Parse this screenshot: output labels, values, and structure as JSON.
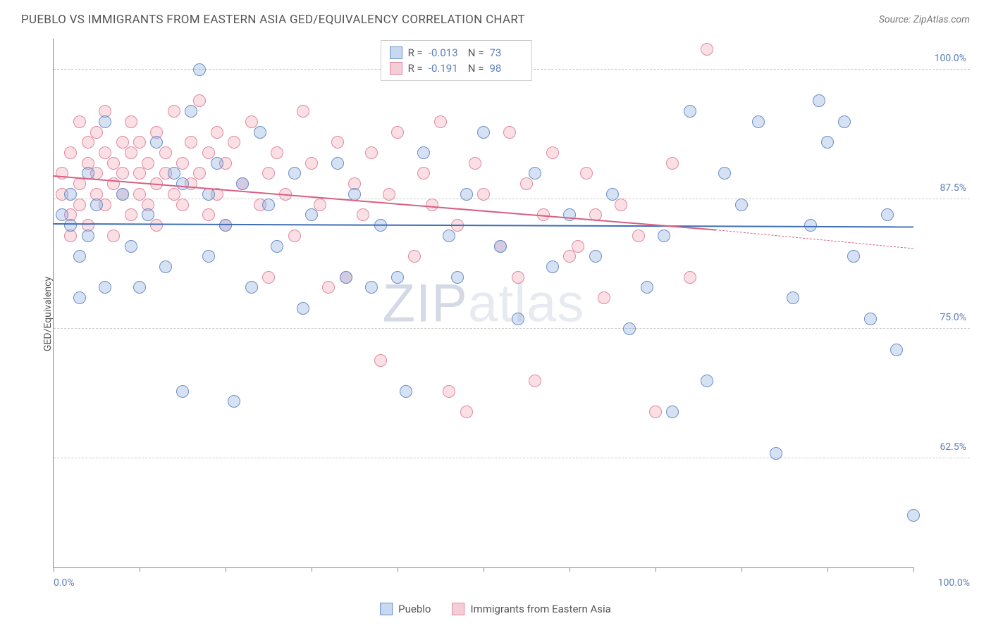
{
  "title": "PUEBLO VS IMMIGRANTS FROM EASTERN ASIA GED/EQUIVALENCY CORRELATION CHART",
  "source": "Source: ZipAtlas.com",
  "watermark_a": "ZIP",
  "watermark_b": "atlas",
  "y_axis_title": "GED/Equivalency",
  "chart": {
    "type": "scatter",
    "xlim": [
      0,
      100
    ],
    "ylim": [
      52,
      103
    ],
    "x_ticks": [
      0,
      10,
      20,
      30,
      40,
      50,
      60,
      70,
      80,
      90,
      100
    ],
    "y_grid": [
      62.5,
      75.0,
      87.5,
      100.0
    ],
    "y_tick_labels": [
      "62.5%",
      "75.0%",
      "87.5%",
      "100.0%"
    ],
    "x_min_label": "0.0%",
    "x_max_label": "100.0%",
    "background_color": "#ffffff",
    "grid_color": "#cccccc",
    "axis_color": "#888888",
    "tick_label_color": "#5b7fb8",
    "marker_radius": 9,
    "marker_stroke_width": 1.4,
    "series": [
      {
        "name": "Pueblo",
        "fill": "rgba(120,160,220,0.30)",
        "stroke": "#6a8fc8",
        "swatch_fill": "#c8d8f0",
        "swatch_border": "#6a8fc8",
        "r_label": "R =",
        "r_value": "-0.013",
        "n_label": "N =",
        "n_value": "73",
        "trend": {
          "x1": 0,
          "y1": 85.2,
          "x2": 100,
          "y2": 84.9,
          "color": "#3d6db5",
          "width": 2
        },
        "points": [
          [
            1,
            86
          ],
          [
            2,
            85
          ],
          [
            2,
            88
          ],
          [
            3,
            78
          ],
          [
            3,
            82
          ],
          [
            4,
            84
          ],
          [
            4,
            90
          ],
          [
            5,
            87
          ],
          [
            6,
            79
          ],
          [
            6,
            95
          ],
          [
            8,
            88
          ],
          [
            9,
            83
          ],
          [
            10,
            79
          ],
          [
            11,
            86
          ],
          [
            12,
            93
          ],
          [
            13,
            81
          ],
          [
            14,
            90
          ],
          [
            15,
            69
          ],
          [
            15,
            89
          ],
          [
            16,
            96
          ],
          [
            17,
            100
          ],
          [
            18,
            82
          ],
          [
            18,
            88
          ],
          [
            19,
            91
          ],
          [
            20,
            85
          ],
          [
            21,
            68
          ],
          [
            22,
            89
          ],
          [
            23,
            79
          ],
          [
            24,
            94
          ],
          [
            25,
            87
          ],
          [
            26,
            83
          ],
          [
            28,
            90
          ],
          [
            29,
            77
          ],
          [
            30,
            86
          ],
          [
            33,
            91
          ],
          [
            34,
            80
          ],
          [
            35,
            88
          ],
          [
            37,
            79
          ],
          [
            38,
            85
          ],
          [
            40,
            80
          ],
          [
            41,
            69
          ],
          [
            43,
            92
          ],
          [
            46,
            84
          ],
          [
            47,
            80
          ],
          [
            48,
            88
          ],
          [
            50,
            94
          ],
          [
            52,
            83
          ],
          [
            54,
            76
          ],
          [
            56,
            90
          ],
          [
            58,
            81
          ],
          [
            60,
            86
          ],
          [
            63,
            82
          ],
          [
            65,
            88
          ],
          [
            67,
            75
          ],
          [
            69,
            79
          ],
          [
            71,
            84
          ],
          [
            72,
            67
          ],
          [
            74,
            96
          ],
          [
            76,
            70
          ],
          [
            78,
            90
          ],
          [
            80,
            87
          ],
          [
            82,
            95
          ],
          [
            84,
            63
          ],
          [
            86,
            78
          ],
          [
            88,
            85
          ],
          [
            89,
            97
          ],
          [
            90,
            93
          ],
          [
            92,
            95
          ],
          [
            93,
            82
          ],
          [
            95,
            76
          ],
          [
            97,
            86
          ],
          [
            98,
            73
          ],
          [
            100,
            57
          ]
        ]
      },
      {
        "name": "Immigrants from Eastern Asia",
        "fill": "rgba(240,150,170,0.30)",
        "stroke": "#e08aa0",
        "swatch_fill": "#f5cdd6",
        "swatch_border": "#e08aa0",
        "r_label": "R =",
        "r_value": "-0.191",
        "n_label": "N =",
        "n_value": "98",
        "trend": {
          "x1": 0,
          "y1": 89.8,
          "x2": 77,
          "y2": 84.6,
          "color": "#d85f82",
          "width": 2
        },
        "trend_extend": {
          "x1": 77,
          "y1": 84.6,
          "x2": 100,
          "y2": 82.8,
          "color": "#d85f82"
        },
        "points": [
          [
            1,
            90
          ],
          [
            1,
            88
          ],
          [
            2,
            92
          ],
          [
            2,
            86
          ],
          [
            2,
            84
          ],
          [
            3,
            95
          ],
          [
            3,
            89
          ],
          [
            3,
            87
          ],
          [
            4,
            91
          ],
          [
            4,
            93
          ],
          [
            4,
            85
          ],
          [
            5,
            90
          ],
          [
            5,
            88
          ],
          [
            5,
            94
          ],
          [
            6,
            92
          ],
          [
            6,
            87
          ],
          [
            6,
            96
          ],
          [
            7,
            89
          ],
          [
            7,
            91
          ],
          [
            7,
            84
          ],
          [
            8,
            93
          ],
          [
            8,
            88
          ],
          [
            8,
            90
          ],
          [
            9,
            92
          ],
          [
            9,
            86
          ],
          [
            9,
            95
          ],
          [
            10,
            90
          ],
          [
            10,
            88
          ],
          [
            10,
            93
          ],
          [
            11,
            91
          ],
          [
            11,
            87
          ],
          [
            12,
            94
          ],
          [
            12,
            89
          ],
          [
            12,
            85
          ],
          [
            13,
            92
          ],
          [
            13,
            90
          ],
          [
            14,
            96
          ],
          [
            14,
            88
          ],
          [
            15,
            91
          ],
          [
            15,
            87
          ],
          [
            16,
            93
          ],
          [
            16,
            89
          ],
          [
            17,
            90
          ],
          [
            17,
            97
          ],
          [
            18,
            92
          ],
          [
            18,
            86
          ],
          [
            19,
            94
          ],
          [
            19,
            88
          ],
          [
            20,
            91
          ],
          [
            20,
            85
          ],
          [
            21,
            93
          ],
          [
            22,
            89
          ],
          [
            23,
            95
          ],
          [
            24,
            87
          ],
          [
            25,
            90
          ],
          [
            25,
            80
          ],
          [
            26,
            92
          ],
          [
            27,
            88
          ],
          [
            28,
            84
          ],
          [
            29,
            96
          ],
          [
            30,
            91
          ],
          [
            31,
            87
          ],
          [
            32,
            79
          ],
          [
            33,
            93
          ],
          [
            34,
            80
          ],
          [
            35,
            89
          ],
          [
            36,
            86
          ],
          [
            37,
            92
          ],
          [
            38,
            72
          ],
          [
            39,
            88
          ],
          [
            40,
            94
          ],
          [
            42,
            82
          ],
          [
            43,
            90
          ],
          [
            44,
            87
          ],
          [
            45,
            95
          ],
          [
            46,
            69
          ],
          [
            47,
            85
          ],
          [
            48,
            67
          ],
          [
            49,
            91
          ],
          [
            50,
            88
          ],
          [
            52,
            83
          ],
          [
            53,
            94
          ],
          [
            54,
            80
          ],
          [
            55,
            89
          ],
          [
            56,
            70
          ],
          [
            57,
            86
          ],
          [
            58,
            92
          ],
          [
            60,
            82
          ],
          [
            62,
            90
          ],
          [
            64,
            78
          ],
          [
            66,
            87
          ],
          [
            68,
            84
          ],
          [
            70,
            67
          ],
          [
            72,
            91
          ],
          [
            74,
            80
          ],
          [
            76,
            102
          ],
          [
            63,
            86
          ],
          [
            61,
            83
          ]
        ]
      }
    ]
  },
  "bottom_legend": [
    {
      "label": "Pueblo",
      "swatch_fill": "#c8d8f0",
      "swatch_border": "#6a8fc8"
    },
    {
      "label": "Immigrants from Eastern Asia",
      "swatch_fill": "#f5cdd6",
      "swatch_border": "#e08aa0"
    }
  ]
}
